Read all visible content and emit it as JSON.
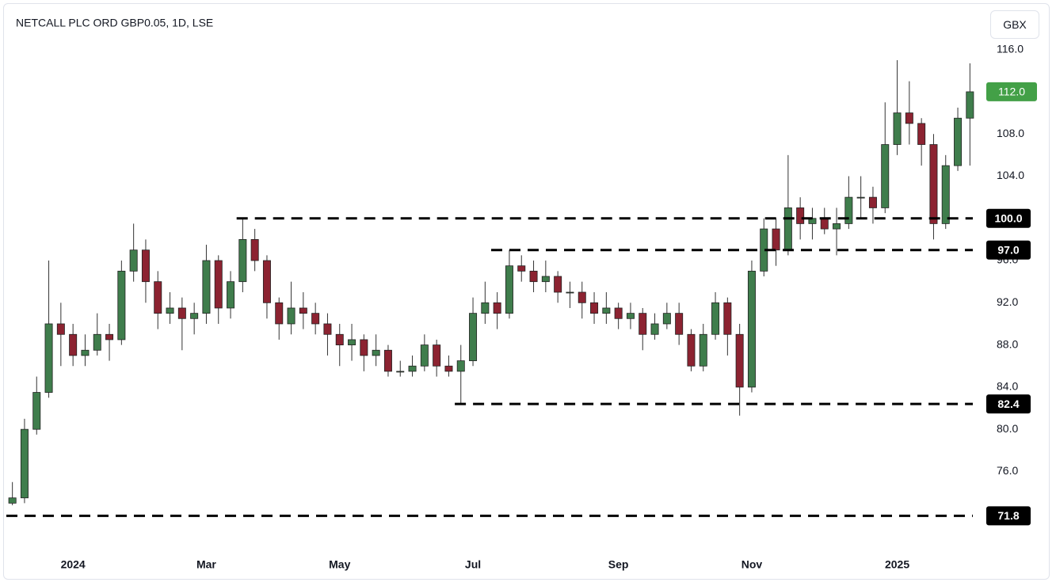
{
  "chart_data": {
    "type": "candlestick",
    "title": "NETCALL PLC ORD GBP0.05, 1D, LSE",
    "currency": "GBX",
    "categories": [
      null,
      null,
      null,
      null,
      null,
      "2024",
      null,
      null,
      null,
      null,
      null,
      null,
      null,
      null,
      null,
      null,
      "Mar",
      null,
      null,
      null,
      null,
      null,
      null,
      null,
      null,
      null,
      null,
      "May",
      null,
      null,
      null,
      null,
      null,
      null,
      null,
      null,
      null,
      null,
      "Jul",
      null,
      null,
      null,
      null,
      null,
      null,
      null,
      null,
      null,
      null,
      null,
      "Sep",
      null,
      null,
      null,
      null,
      null,
      null,
      null,
      null,
      null,
      null,
      "Nov",
      null,
      null,
      null,
      null,
      null,
      null,
      null,
      null,
      null,
      null,
      null,
      "2025",
      null,
      null,
      null,
      null,
      null,
      null
    ],
    "open": [
      73,
      73.5,
      80,
      83.5,
      90,
      89,
      87,
      87.5,
      89,
      88.5,
      95,
      97,
      94,
      91,
      91.5,
      90.5,
      91,
      96,
      91.5,
      94,
      98,
      96,
      92,
      90,
      91.5,
      91,
      90,
      89,
      88,
      88.5,
      87,
      87.5,
      85.5,
      85.5,
      86,
      88,
      86,
      85.5,
      86.5,
      91,
      92,
      91,
      95.5,
      95,
      94,
      94.5,
      93,
      93,
      92,
      91,
      91.5,
      90.5,
      91,
      89,
      90,
      91,
      89,
      86,
      89,
      92,
      89,
      84,
      95,
      99,
      97,
      101,
      99.5,
      100,
      99,
      99.5,
      102,
      102,
      101,
      107,
      110,
      109,
      107,
      99.5,
      105,
      109.5
    ],
    "high": [
      75,
      81,
      85,
      96,
      92,
      90,
      89,
      91,
      90,
      96,
      99.5,
      98,
      95,
      93,
      92.5,
      92,
      97.5,
      96.5,
      95,
      100,
      99,
      96.5,
      92.5,
      94,
      93,
      92,
      91,
      90,
      90,
      89,
      89,
      88,
      86.5,
      87,
      89,
      88.5,
      87,
      88,
      92.5,
      94,
      93,
      97,
      96.5,
      96,
      96,
      95,
      94,
      94,
      93,
      93,
      92,
      92,
      91.5,
      91,
      92,
      92,
      89.5,
      90,
      93,
      92.5,
      90,
      96,
      100,
      100,
      106,
      102,
      101,
      101,
      101,
      104,
      104,
      103,
      111,
      115,
      113,
      109.5,
      108,
      106,
      110.5,
      114.7
    ],
    "low": [
      72.8,
      73,
      79.5,
      83,
      86,
      86,
      86,
      87,
      86.5,
      88,
      94,
      92,
      89.5,
      90,
      87.5,
      89,
      90,
      90,
      90.5,
      93,
      95,
      90.5,
      88.5,
      89,
      89.5,
      89,
      87,
      86,
      86.5,
      85.5,
      86,
      85,
      85,
      85,
      85.5,
      85,
      85,
      82.4,
      86,
      90,
      89.5,
      90.5,
      94,
      93,
      93,
      92,
      91.5,
      90.5,
      90,
      90,
      89.5,
      89.5,
      87.5,
      88.5,
      89.5,
      88,
      85.5,
      85.5,
      88.5,
      87,
      81.3,
      83.5,
      94.5,
      95.5,
      96.5,
      98,
      98,
      98.5,
      96.5,
      99,
      100,
      99.5,
      100.5,
      106,
      107,
      105,
      98,
      99,
      104.5,
      105
    ],
    "close": [
      73.5,
      80,
      83.5,
      90,
      89,
      87,
      87.5,
      89,
      88.5,
      95,
      97,
      94,
      91,
      91.5,
      90.5,
      91,
      96,
      91.5,
      94,
      98,
      96,
      92,
      90,
      91.5,
      91,
      90,
      89,
      88,
      88.5,
      87,
      87.5,
      85.5,
      85.5,
      86,
      88,
      86,
      85.5,
      86.5,
      91,
      92,
      91,
      95.5,
      95,
      94,
      94.5,
      93,
      93,
      92,
      91,
      91.5,
      90.5,
      91,
      89,
      90,
      91,
      89,
      86,
      89,
      92,
      89,
      84,
      95,
      99,
      97,
      101,
      99.5,
      100,
      99,
      99.5,
      102,
      102,
      101,
      107,
      110,
      109,
      107,
      99.5,
      105,
      109.5,
      112
    ],
    "up_color": "#3f7d4c",
    "down_color": "#8c2331",
    "ylim": [
      68.9,
      117.7
    ],
    "yticks": [
      {
        "value": 116,
        "label": "116.0"
      },
      {
        "value": 108,
        "label": "108.0"
      },
      {
        "value": 104,
        "label": "104.0"
      },
      {
        "value": 96,
        "label": "96.0"
      },
      {
        "value": 92,
        "label": "92.0"
      },
      {
        "value": 88,
        "label": "88.0"
      },
      {
        "value": 84,
        "label": "84.0"
      },
      {
        "value": 80,
        "label": "80.0"
      },
      {
        "value": 76,
        "label": "76.0"
      }
    ],
    "levels": [
      {
        "value": 100,
        "label": "100.0",
        "from": 19
      },
      {
        "value": 97,
        "label": "97.0",
        "from": 40
      },
      {
        "value": 82.4,
        "label": "82.4",
        "from": 37
      },
      {
        "value": 71.8,
        "label": "71.8",
        "from": 0
      }
    ],
    "last_price": {
      "value": 112,
      "label": "112.0",
      "color": "#43a047"
    }
  }
}
